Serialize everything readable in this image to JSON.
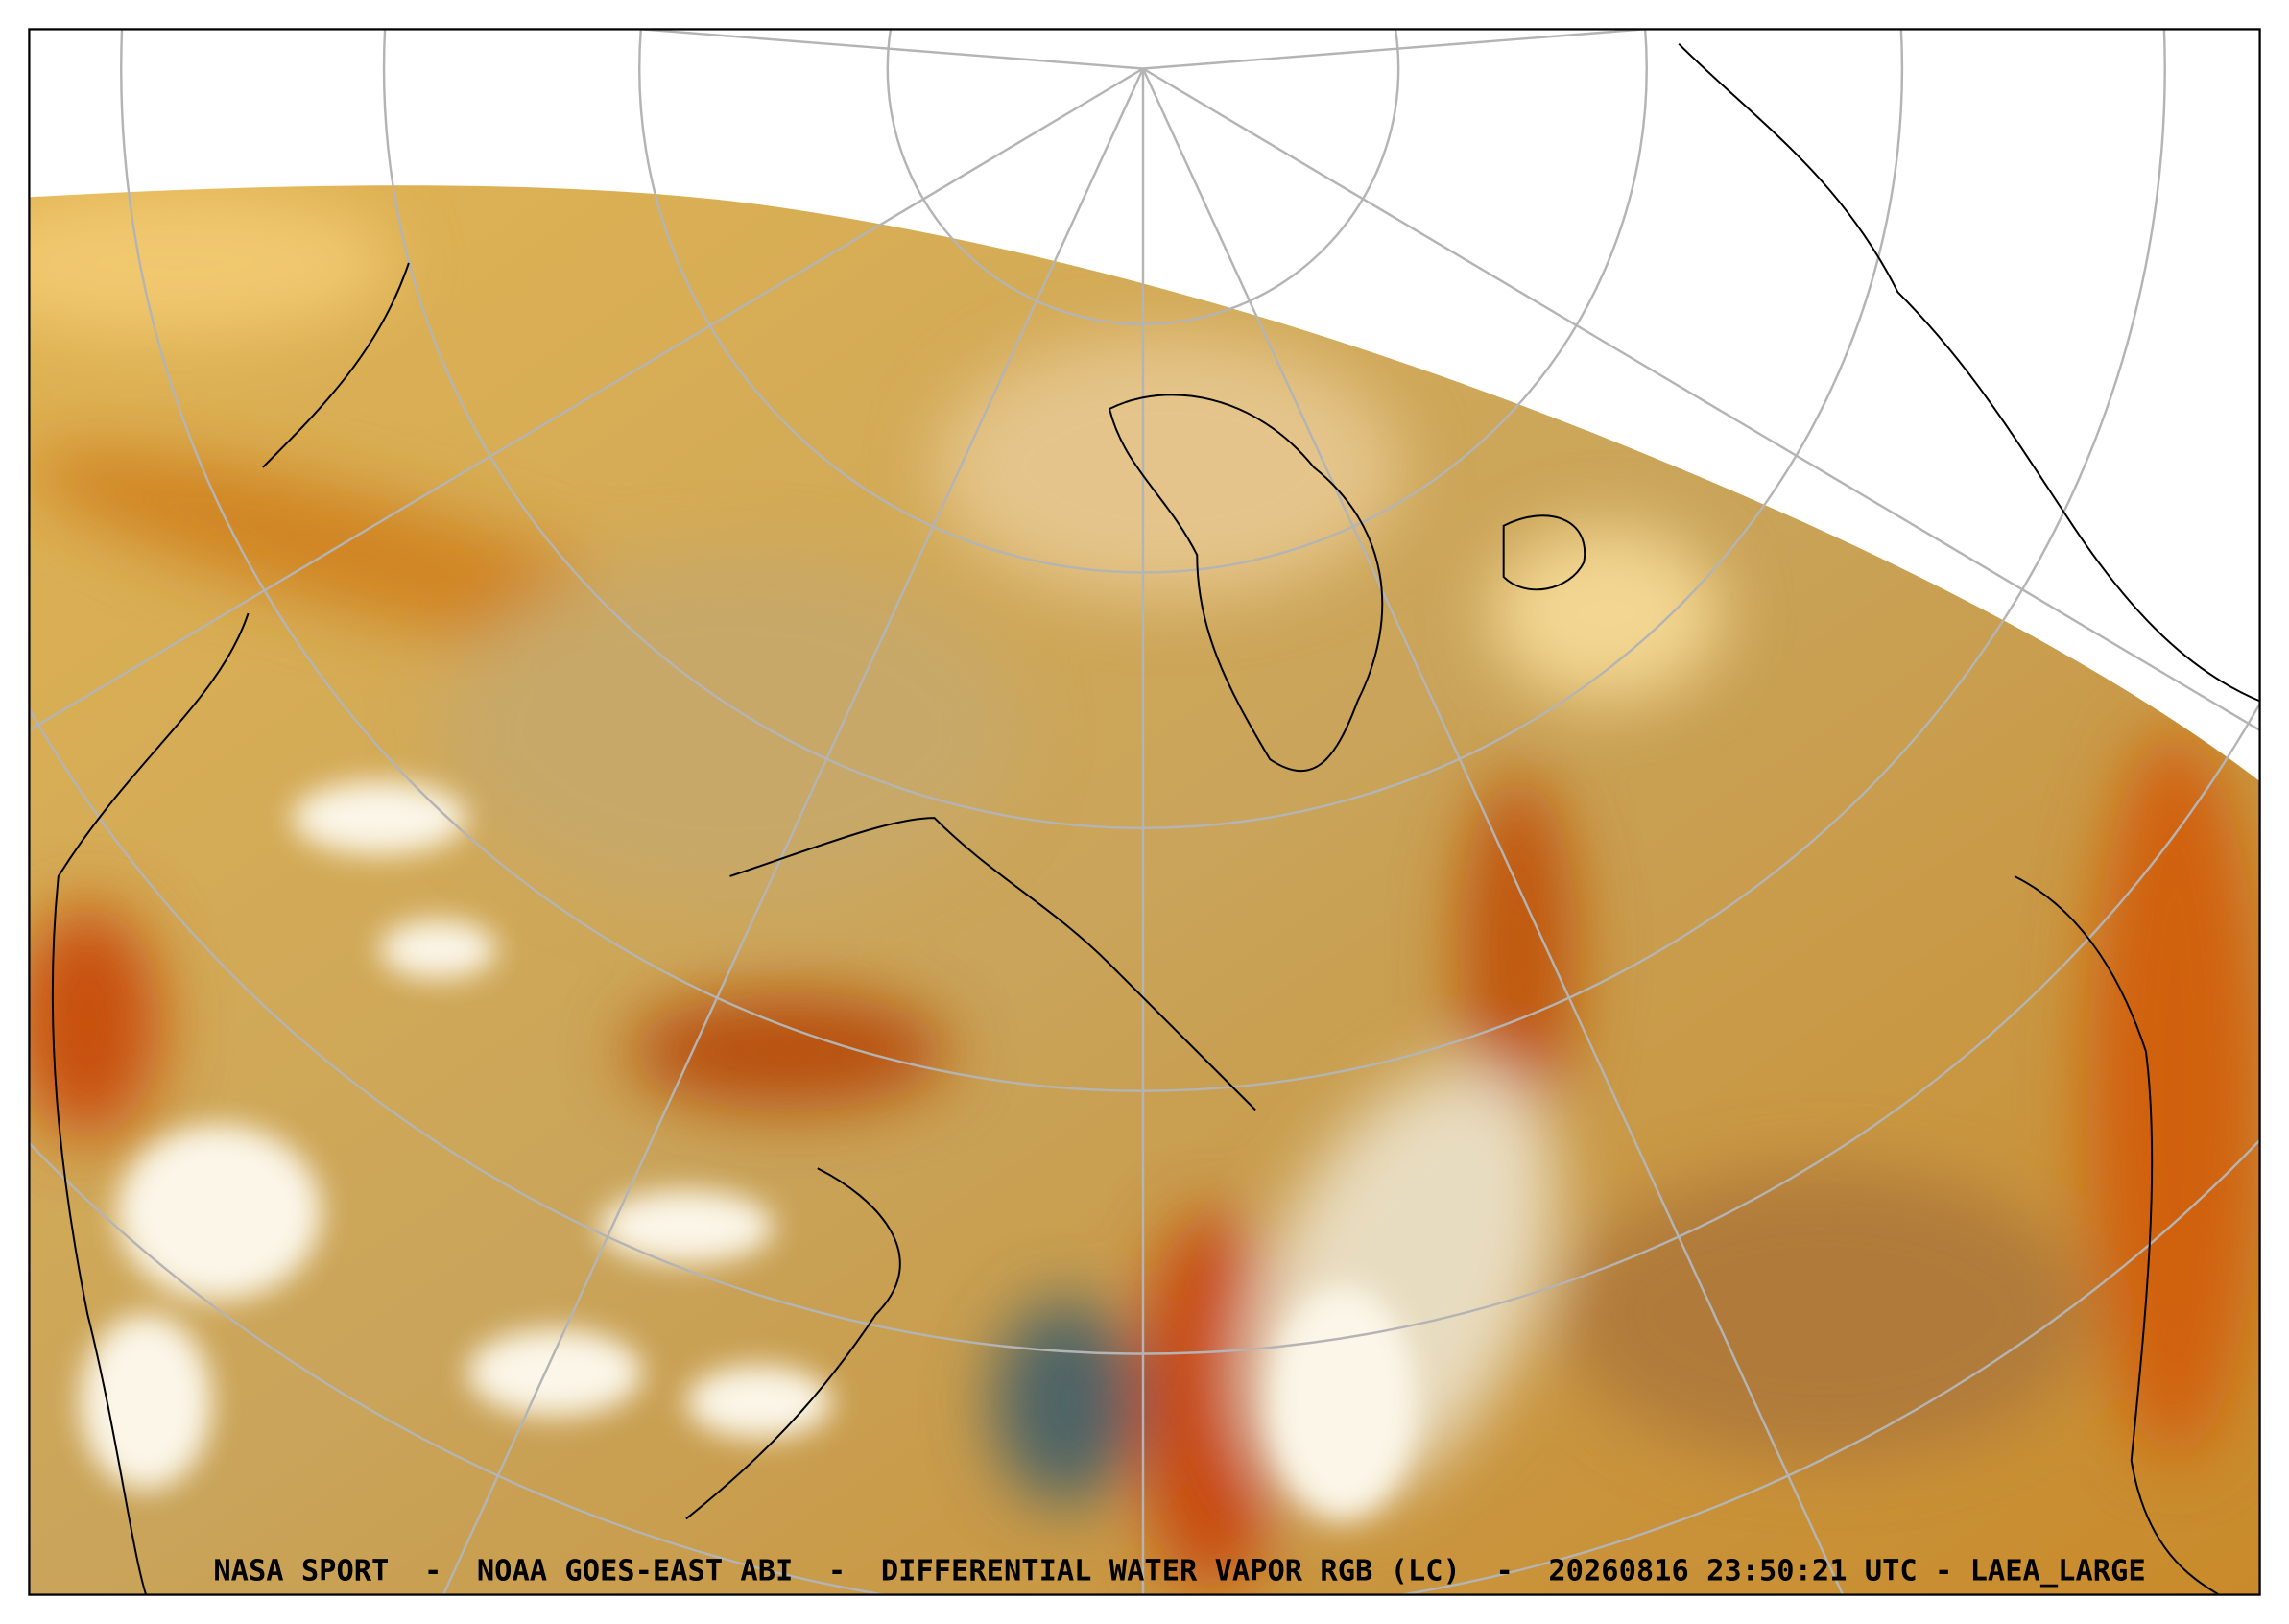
{
  "caption": "NASA SPORT  -  NOAA GOES-EAST ABI  -  DIFFERENTIAL WATER VAPOR RGB (LC)  -  20260816 23:50:21 UTC - LAEA_LARGE"
}
